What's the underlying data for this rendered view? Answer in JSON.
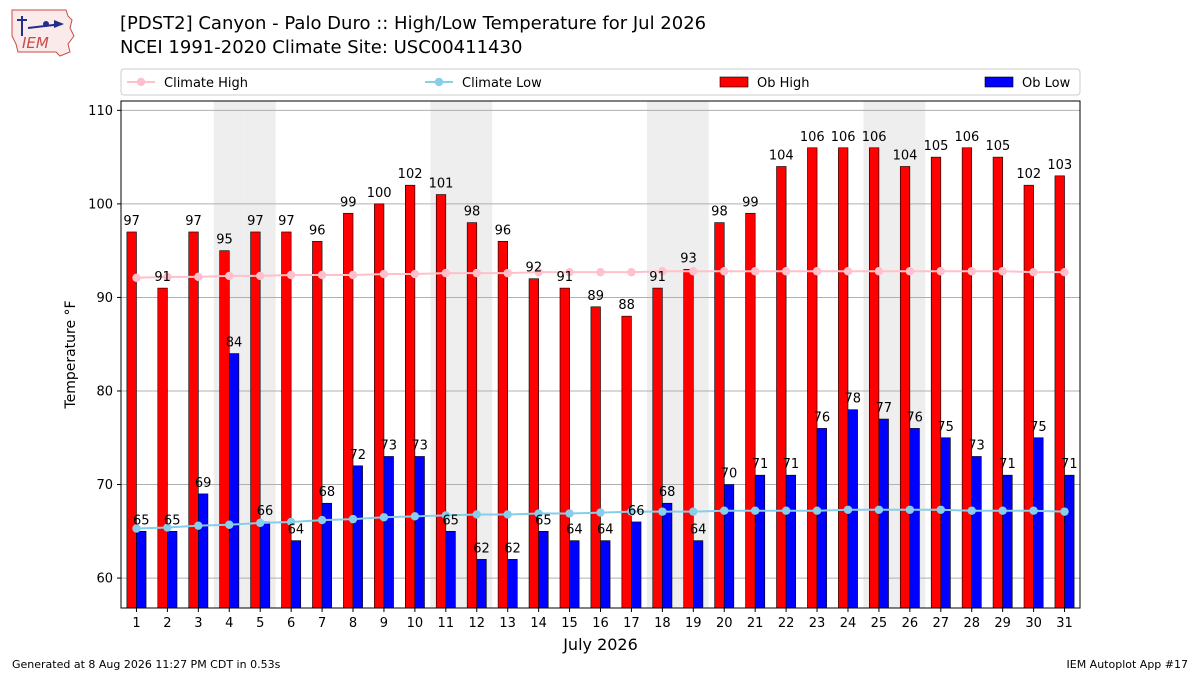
{
  "header": {
    "title_line1": "[PDST2] Canyon - Palo Duro :: High/Low Temperature for Jul 2026",
    "title_line2": "NCEI 1991-2020 Climate Site: USC00411430"
  },
  "logo": {
    "text": "IEM"
  },
  "footer": {
    "left": "Generated at 8 Aug 2026 11:27 PM CDT in 0.53s",
    "right": "IEM Autoplot App #17"
  },
  "colors": {
    "ob_high": "#ff0000",
    "ob_low": "#0000ff",
    "climate_high": "#ffc0cb",
    "climate_low": "#87ceeb",
    "weekend_band": "#eeeeee",
    "grid": "#b0b0b0"
  },
  "chart_data": {
    "type": "bar",
    "title": "[PDST2] Canyon - Palo Duro :: High/Low Temperature for Jul 2026",
    "subtitle": "NCEI 1991-2020 Climate Site: USC00411430",
    "xlabel": "July 2026",
    "ylabel": "Temperature °F",
    "ylim": [
      56.8,
      111
    ],
    "yticks": [
      60,
      70,
      80,
      90,
      100,
      110
    ],
    "grid": "horizontal",
    "legend_position": "top",
    "categories": [
      "1",
      "2",
      "3",
      "4",
      "5",
      "6",
      "7",
      "8",
      "9",
      "10",
      "11",
      "12",
      "13",
      "14",
      "15",
      "16",
      "17",
      "18",
      "19",
      "20",
      "21",
      "22",
      "23",
      "24",
      "25",
      "26",
      "27",
      "28",
      "29",
      "30",
      "31"
    ],
    "shaded_days": [
      4,
      5,
      11,
      12,
      18,
      19,
      25,
      26
    ],
    "series": [
      {
        "name": "Climate High",
        "kind": "line",
        "values": [
          92.1,
          92.2,
          92.2,
          92.3,
          92.3,
          92.4,
          92.4,
          92.4,
          92.5,
          92.5,
          92.6,
          92.6,
          92.6,
          92.7,
          92.7,
          92.7,
          92.7,
          92.8,
          92.8,
          92.8,
          92.8,
          92.8,
          92.8,
          92.8,
          92.8,
          92.8,
          92.8,
          92.8,
          92.8,
          92.7,
          92.7
        ]
      },
      {
        "name": "Climate Low",
        "kind": "line",
        "values": [
          65.3,
          65.4,
          65.6,
          65.7,
          65.9,
          66.0,
          66.2,
          66.3,
          66.5,
          66.6,
          66.7,
          66.8,
          66.8,
          66.9,
          66.9,
          67.0,
          67.1,
          67.1,
          67.1,
          67.2,
          67.2,
          67.2,
          67.2,
          67.3,
          67.3,
          67.3,
          67.3,
          67.2,
          67.2,
          67.2,
          67.1
        ]
      },
      {
        "name": "Ob High",
        "kind": "bar",
        "values": [
          97,
          91,
          97,
          95,
          97,
          97,
          96,
          99,
          100,
          102,
          101,
          98,
          96,
          92,
          91,
          89,
          88,
          91,
          93,
          98,
          99,
          104,
          106,
          106,
          106,
          104,
          105,
          106,
          105,
          102,
          103
        ]
      },
      {
        "name": "Ob Low",
        "kind": "bar",
        "values": [
          65,
          65,
          69,
          84,
          66,
          64,
          68,
          72,
          73,
          73,
          65,
          62,
          62,
          65,
          64,
          64,
          66,
          68,
          64,
          70,
          71,
          71,
          76,
          78,
          77,
          76,
          75,
          73,
          71,
          75,
          71
        ]
      }
    ]
  }
}
